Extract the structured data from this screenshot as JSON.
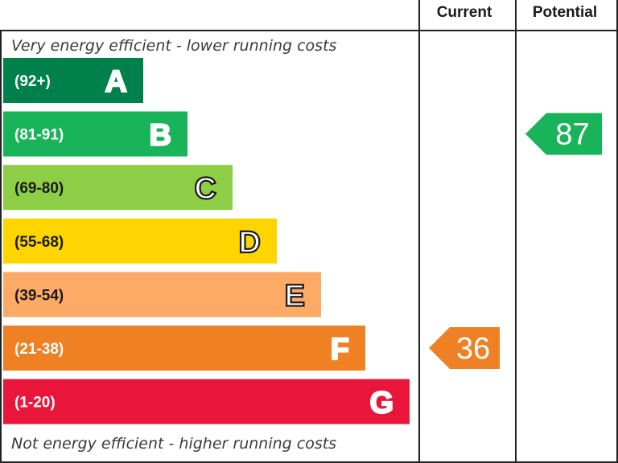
{
  "chart_data": {
    "type": "bar",
    "header": {
      "current_label": "Current",
      "potential_label": "Potential"
    },
    "top_note": "Very energy efficient - lower running costs",
    "bottom_note": "Not energy efficient - higher running costs",
    "bands": [
      {
        "letter": "A",
        "range": "(92+)",
        "color": "#00804a"
      },
      {
        "letter": "B",
        "range": "(81-91)",
        "color": "#19b459"
      },
      {
        "letter": "C",
        "range": "(69-80)",
        "color": "#8dce46"
      },
      {
        "letter": "D",
        "range": "(55-68)",
        "color": "#ffd500"
      },
      {
        "letter": "E",
        "range": "(39-54)",
        "color": "#fcaa65"
      },
      {
        "letter": "F",
        "range": "(21-38)",
        "color": "#ef8023"
      },
      {
        "letter": "G",
        "range": "(1-20)",
        "color": "#e9153b"
      }
    ],
    "current": {
      "value": "36",
      "band": "F",
      "color": "#ef8023"
    },
    "potential": {
      "value": "87",
      "band": "B",
      "color": "#19b459"
    }
  }
}
